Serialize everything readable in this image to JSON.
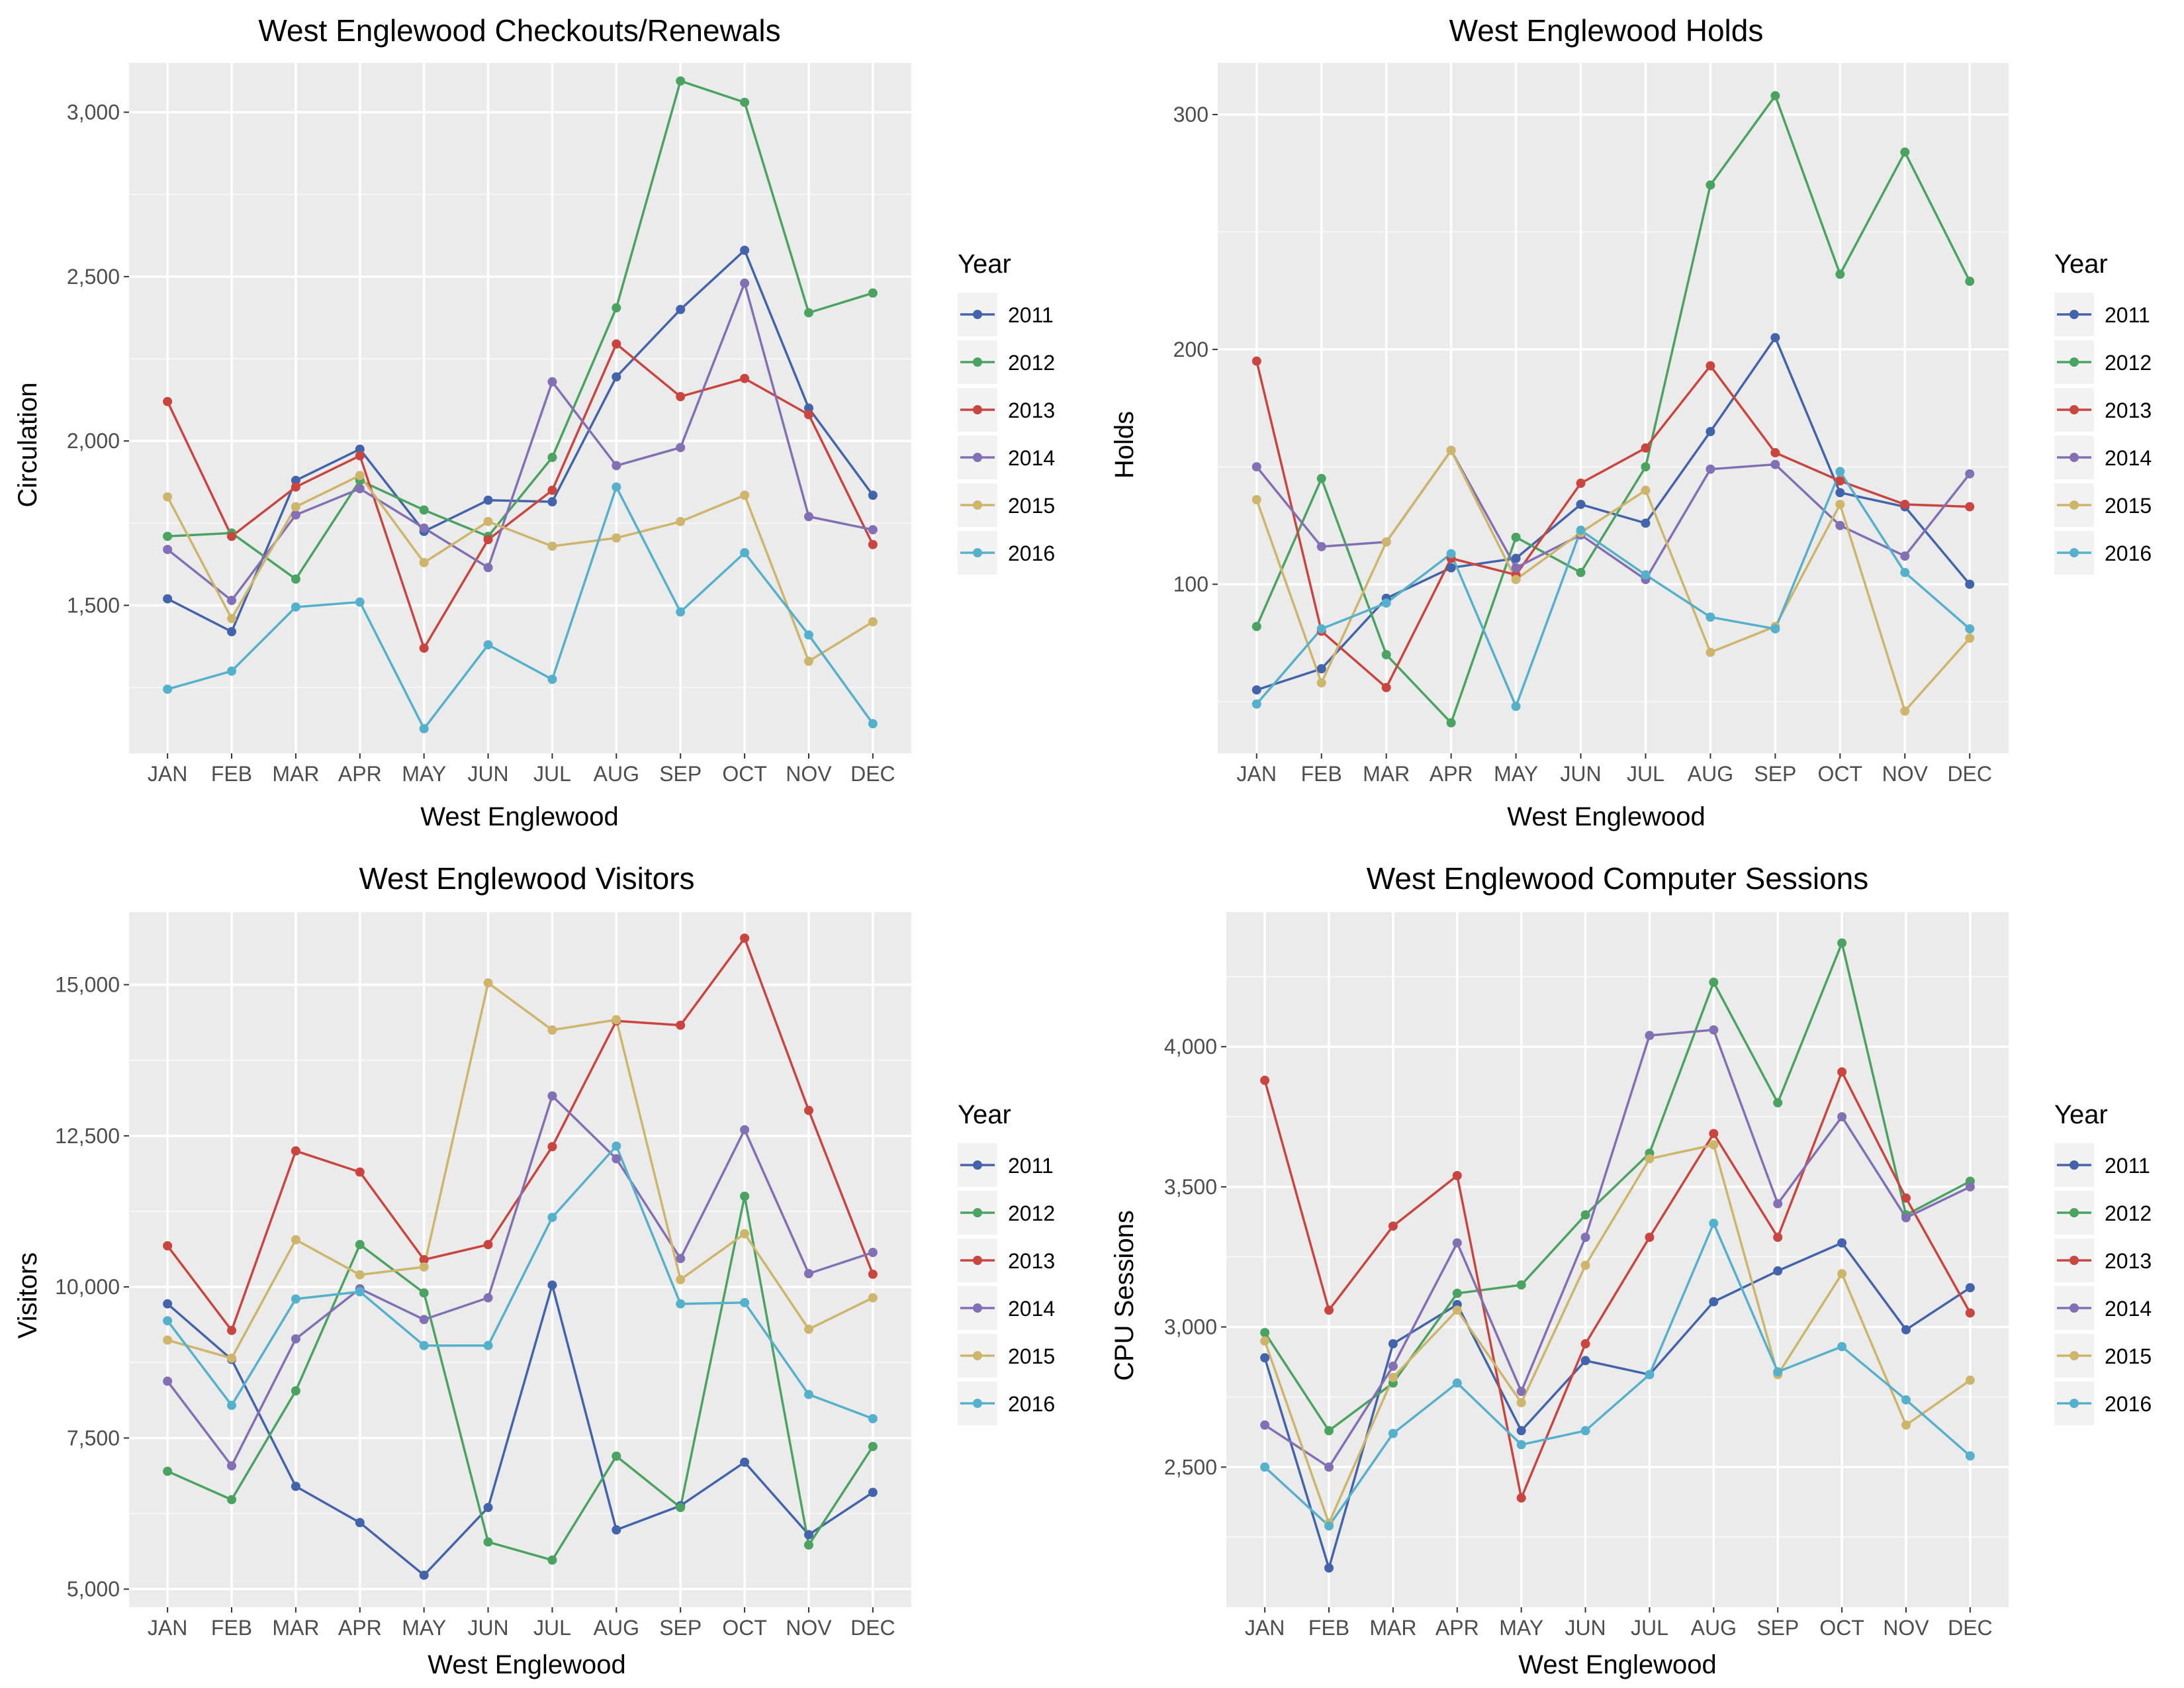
{
  "chart_data": [
    {
      "type": "line",
      "title": "West Englewood Checkouts/Renewals",
      "xlabel": "West Englewood",
      "ylabel": "Circulation",
      "categories": [
        "JAN",
        "FEB",
        "MAR",
        "APR",
        "MAY",
        "JUN",
        "JUL",
        "AUG",
        "SEP",
        "OCT",
        "NOV",
        "DEC"
      ],
      "ylim": [
        1050,
        3150
      ],
      "yticks": [
        1500,
        2000,
        2500,
        3000
      ],
      "ytick_labels": [
        "1,500",
        "2,000",
        "2,500",
        "3,000"
      ],
      "grid": true,
      "legend": {
        "title": "Year",
        "position": "right"
      },
      "series": [
        {
          "name": "2011",
          "color": "#4363aa",
          "values": [
            1520,
            1420,
            1880,
            1975,
            1725,
            1820,
            1815,
            2195,
            2400,
            2580,
            2100,
            1835
          ]
        },
        {
          "name": "2012",
          "color": "#4aa360",
          "values": [
            1710,
            1720,
            1580,
            1880,
            1790,
            1710,
            1950,
            2405,
            3095,
            3030,
            2390,
            2450
          ]
        },
        {
          "name": "2013",
          "color": "#c9453f",
          "values": [
            2120,
            1710,
            1860,
            1955,
            1370,
            1700,
            1850,
            2295,
            2135,
            2190,
            2080,
            1685
          ]
        },
        {
          "name": "2014",
          "color": "#8370b4",
          "values": [
            1670,
            1515,
            1775,
            1855,
            1735,
            1615,
            2180,
            1925,
            1980,
            2480,
            1770,
            1730
          ]
        },
        {
          "name": "2015",
          "color": "#cdb56b",
          "values": [
            1830,
            1460,
            1800,
            1895,
            1630,
            1755,
            1680,
            1705,
            1755,
            1835,
            1330,
            1450
          ]
        },
        {
          "name": "2016",
          "color": "#55b1cb",
          "values": [
            1245,
            1300,
            1495,
            1510,
            1125,
            1380,
            1275,
            1860,
            1480,
            1660,
            1410,
            1140
          ]
        }
      ]
    },
    {
      "type": "line",
      "title": "West Englewood Holds",
      "xlabel": "West Englewood",
      "ylabel": "Holds",
      "categories": [
        "JAN",
        "FEB",
        "MAR",
        "APR",
        "MAY",
        "JUN",
        "JUL",
        "AUG",
        "SEP",
        "OCT",
        "NOV",
        "DEC"
      ],
      "ylim": [
        28,
        322
      ],
      "yticks": [
        100,
        200,
        300
      ],
      "ytick_labels": [
        "100",
        "200",
        "300"
      ],
      "grid": true,
      "legend": {
        "title": "Year",
        "position": "right"
      },
      "series": [
        {
          "name": "2011",
          "color": "#4363aa",
          "values": [
            55,
            64,
            94,
            107,
            111,
            134,
            126,
            165,
            205,
            139,
            133,
            100
          ]
        },
        {
          "name": "2012",
          "color": "#4aa360",
          "values": [
            82,
            145,
            70,
            41,
            120,
            105,
            150,
            270,
            308,
            232,
            284,
            229
          ]
        },
        {
          "name": "2013",
          "color": "#c9453f",
          "values": [
            195,
            80,
            56,
            111,
            104,
            143,
            158,
            193,
            156,
            144,
            134,
            133
          ]
        },
        {
          "name": "2014",
          "color": "#8370b4",
          "values": [
            150,
            116,
            118,
            157,
            107,
            121,
            102,
            149,
            151,
            125,
            112,
            147
          ]
        },
        {
          "name": "2015",
          "color": "#cdb56b",
          "values": [
            136,
            58,
            118,
            157,
            102,
            122,
            140,
            71,
            82,
            134,
            46,
            77
          ]
        },
        {
          "name": "2016",
          "color": "#55b1cb",
          "values": [
            49,
            81,
            92,
            113,
            48,
            123,
            104,
            86,
            81,
            148,
            105,
            81
          ]
        }
      ]
    },
    {
      "type": "line",
      "title": "West Englewood Visitors",
      "xlabel": "West Englewood",
      "ylabel": "Visitors",
      "categories": [
        "JAN",
        "FEB",
        "MAR",
        "APR",
        "MAY",
        "JUN",
        "JUL",
        "AUG",
        "SEP",
        "OCT",
        "NOV",
        "DEC"
      ],
      "ylim": [
        4700,
        16200
      ],
      "yticks": [
        5000,
        7500,
        10000,
        12500,
        15000
      ],
      "ytick_labels": [
        "5,000",
        "7,500",
        "10,000",
        "12,500",
        "15,000"
      ],
      "grid": true,
      "legend": {
        "title": "Year",
        "position": "right"
      },
      "series": [
        {
          "name": "2011",
          "color": "#4363aa",
          "values": [
            9720,
            8800,
            6700,
            6100,
            5230,
            6350,
            10030,
            5980,
            6380,
            7100,
            5900,
            6600
          ]
        },
        {
          "name": "2012",
          "color": "#4aa360",
          "values": [
            6950,
            6480,
            8280,
            10700,
            9900,
            5780,
            5480,
            7200,
            6350,
            11500,
            5730,
            7360
          ]
        },
        {
          "name": "2013",
          "color": "#c9453f",
          "values": [
            10680,
            9280,
            12250,
            11900,
            10450,
            10700,
            12320,
            14400,
            14330,
            15770,
            12920,
            10210
          ]
        },
        {
          "name": "2014",
          "color": "#8370b4",
          "values": [
            8440,
            7040,
            9140,
            9970,
            9460,
            9820,
            13160,
            12120,
            10470,
            12600,
            10220,
            10570
          ]
        },
        {
          "name": "2015",
          "color": "#cdb56b",
          "values": [
            9120,
            8820,
            10780,
            10200,
            10330,
            15030,
            14250,
            14420,
            10120,
            10880,
            9300,
            9820
          ]
        },
        {
          "name": "2016",
          "color": "#55b1cb",
          "values": [
            9440,
            8040,
            9800,
            9920,
            9030,
            9030,
            11150,
            12330,
            9720,
            9740,
            8220,
            7820
          ]
        }
      ]
    },
    {
      "type": "line",
      "title": "West Englewood Computer Sessions",
      "xlabel": "West Englewood",
      "ylabel": "CPU Sessions",
      "categories": [
        "JAN",
        "FEB",
        "MAR",
        "APR",
        "MAY",
        "JUN",
        "JUL",
        "AUG",
        "SEP",
        "OCT",
        "NOV",
        "DEC"
      ],
      "ylim": [
        2000,
        4480
      ],
      "yticks": [
        2500,
        3000,
        3500,
        4000
      ],
      "ytick_labels": [
        "2,500",
        "3,000",
        "3,500",
        "4,000"
      ],
      "grid": true,
      "legend": {
        "title": "Year",
        "position": "right"
      },
      "series": [
        {
          "name": "2011",
          "color": "#4363aa",
          "values": [
            2890,
            2140,
            2940,
            3080,
            2630,
            2880,
            2830,
            3090,
            3200,
            3300,
            2990,
            3140
          ]
        },
        {
          "name": "2012",
          "color": "#4aa360",
          "values": [
            2980,
            2630,
            2800,
            3120,
            3150,
            3400,
            3620,
            4230,
            3800,
            4370,
            3400,
            3520
          ]
        },
        {
          "name": "2013",
          "color": "#c9453f",
          "values": [
            3880,
            3060,
            3360,
            3540,
            2390,
            2940,
            3320,
            3690,
            3320,
            3910,
            3460,
            3050
          ]
        },
        {
          "name": "2014",
          "color": "#8370b4",
          "values": [
            2650,
            2500,
            2860,
            3300,
            2770,
            3320,
            4040,
            4060,
            3440,
            3750,
            3390,
            3500
          ]
        },
        {
          "name": "2015",
          "color": "#cdb56b",
          "values": [
            2950,
            2300,
            2820,
            3060,
            2730,
            3220,
            3600,
            3650,
            2830,
            3190,
            2650,
            2810
          ]
        },
        {
          "name": "2016",
          "color": "#55b1cb",
          "values": [
            2500,
            2290,
            2620,
            2800,
            2580,
            2630,
            2830,
            3370,
            2840,
            2930,
            2740,
            2540
          ]
        }
      ]
    }
  ]
}
